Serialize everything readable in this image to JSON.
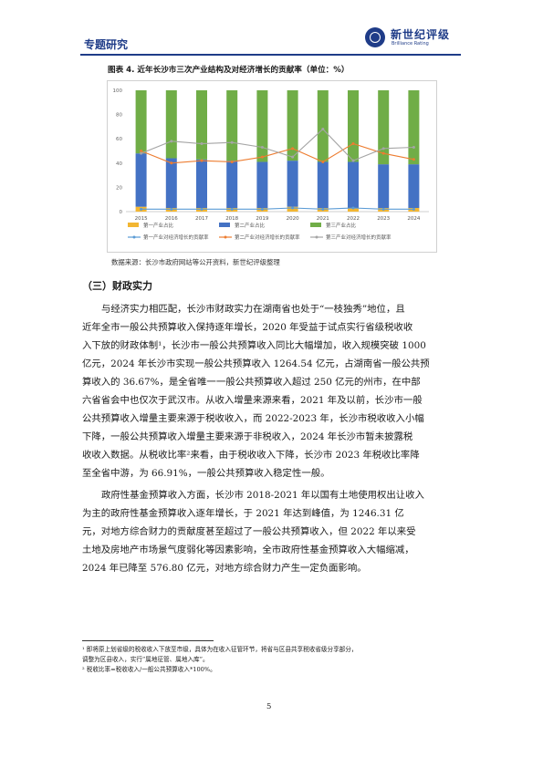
{
  "header": {
    "section_label": "专题研究",
    "logo_name": "新世纪评级",
    "logo_tagline": "Brilliance Rating"
  },
  "figure": {
    "title": "图表 4. 近年长沙市三次产业结构及对经济增长的贡献率（单位：%）",
    "source": "数据来源：长沙市政府网站等公开资料，新世纪评级整理"
  },
  "chart_data": {
    "type": "bar",
    "categories": [
      "2015",
      "2016",
      "2017",
      "2018",
      "2019",
      "2020",
      "2021",
      "2022",
      "2023",
      "2024"
    ],
    "ylim": [
      0,
      100
    ],
    "yticks": [
      "0",
      "20",
      "40",
      "60",
      "80",
      "100"
    ],
    "stack_series": [
      {
        "name": "第一产业占比",
        "color": "#f2b632",
        "values": [
          4,
          3,
          3,
          3,
          3,
          4,
          3,
          3,
          3,
          3
        ]
      },
      {
        "name": "第二产业占比",
        "color": "#4472c4",
        "values": [
          44,
          41,
          40,
          39,
          38,
          38,
          38,
          38,
          36,
          36
        ]
      },
      {
        "name": "第三产业占比",
        "color": "#70ad47",
        "values": [
          52,
          56,
          57,
          58,
          59,
          58,
          59,
          59,
          61,
          61
        ]
      }
    ],
    "line_series": [
      {
        "name": "第一产业对经济增长的贡献率",
        "color": "#5b9bd5",
        "values": [
          2,
          2,
          2,
          2,
          2,
          3,
          2,
          3,
          2,
          2
        ]
      },
      {
        "name": "第二产业对经济增长的贡献率",
        "color": "#ed7d31",
        "values": [
          50,
          40,
          42,
          41,
          45,
          52,
          41,
          56,
          48,
          43
        ]
      },
      {
        "name": "第三产业对经济增长的贡献率",
        "color": "#a5a5a5",
        "values": [
          48,
          58,
          56,
          57,
          53,
          45,
          68,
          42,
          52,
          53
        ]
      }
    ],
    "legend_position": "bottom",
    "grid": false
  },
  "section": {
    "heading": "（三）财政实力"
  },
  "paragraph1": [
    "与经济实力相匹配，长沙市财政实力在湖南省也处于“一枝独秀”地位，且",
    "近年全市一般公共预算收入保持逐年增长，2020 年受益于试点实行省级税收收",
    "入下放的财政体制¹，长沙市一般公共预算收入同比大幅增加，收入规模突破 1000",
    "亿元，2024 年长沙市实现一般公共预算收入 1264.54 亿元，占湖南省一般公共预",
    "算收入的 36.67%，是全省唯一一般公共预算收入超过 250 亿元的州市，在中部",
    "六省省会中也仅次于武汉市。从收入增量来源来看，2021 年及以前，长沙市一般",
    "公共预算收入增量主要来源于税收收入，而 2022-2023 年，长沙市税收收入小幅",
    "下降，一般公共预算收入增量主要来源于非税收入，2024 年长沙市暂未披露税",
    "收收入数据。从税收比率²来看，由于税收收入下降，长沙市 2023 年税收比率降",
    "至全省中游，为 66.91%，一般公共预算收入稳定性一般。"
  ],
  "paragraph2": [
    "政府性基金预算收入方面，长沙市 2018-2021 年以国有土地使用权出让收入",
    "为主的政府性基金预算收入逐年增长，于 2021 年达到峰值，为 1246.31 亿",
    "元，对地方综合财力的贡献度甚至超过了一般公共预算收入，但 2022 年以来受",
    "土地及房地产市场景气度弱化等因素影响，全市政府性基金预算收入大幅缩减，",
    "2024 年已降至 576.80 亿元，对地方综合财力产生一定负面影响。"
  ],
  "footnotes": [
    "¹ 即将原上划省级的税收收入下放至市级，具体为在收入征管环节，将省与区县共享税收省级分享部分，",
    "调整为区县收入，实行“属地征管、属地入库”。",
    "² 税收比率=税收收入/一般公共预算收入*100%。"
  ],
  "page_number": "5"
}
